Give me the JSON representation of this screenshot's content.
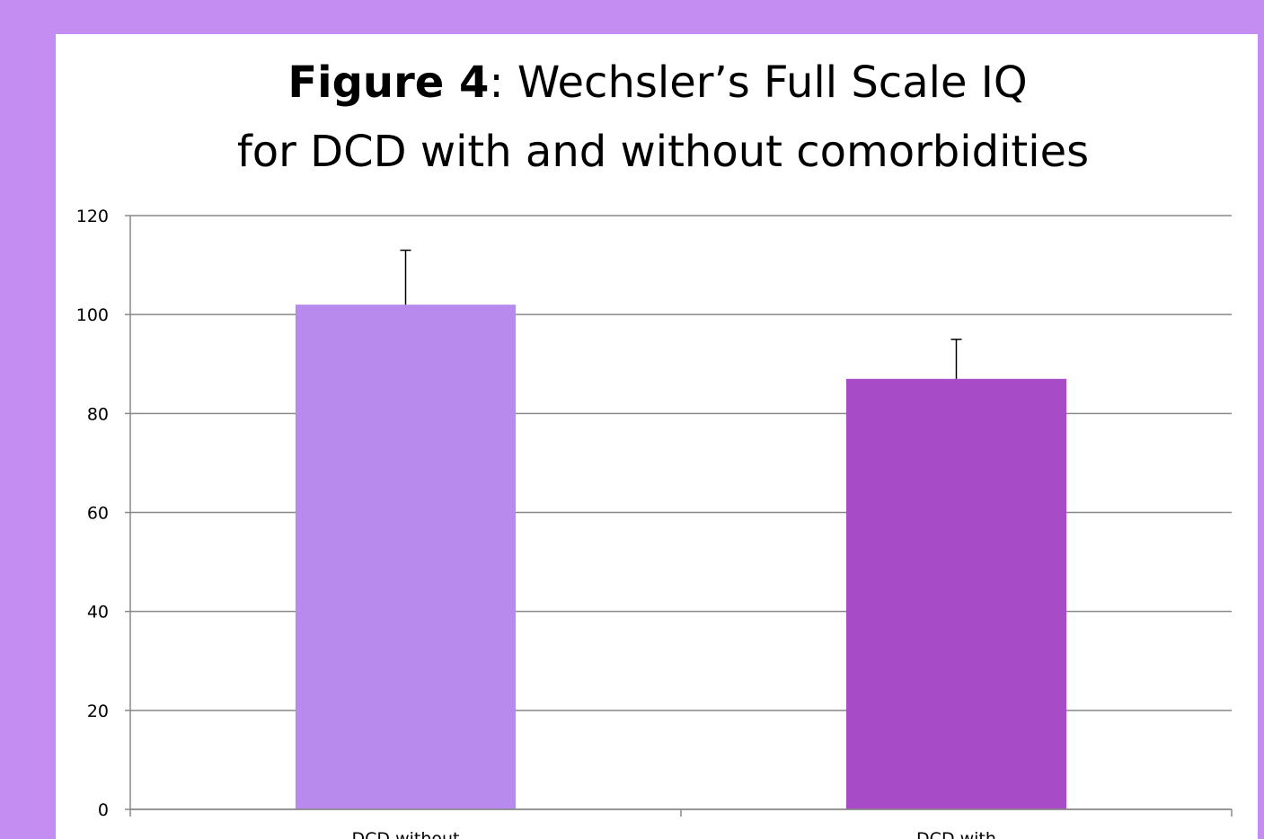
{
  "chart_data": {
    "type": "bar",
    "title": [
      "Figure 4",
      ": Wechsler’s Full Scale IQ",
      "for DCD with and without comorbidities"
    ],
    "categories": [
      "DCD without",
      "DCD with"
    ],
    "values": [
      102,
      87
    ],
    "errors": [
      11,
      8
    ],
    "colors": [
      "#b88aee",
      "#a84bc6"
    ],
    "ylim": [
      0,
      120
    ],
    "yticks": [
      0,
      20,
      40,
      60,
      80,
      100,
      120
    ],
    "grid": true
  }
}
